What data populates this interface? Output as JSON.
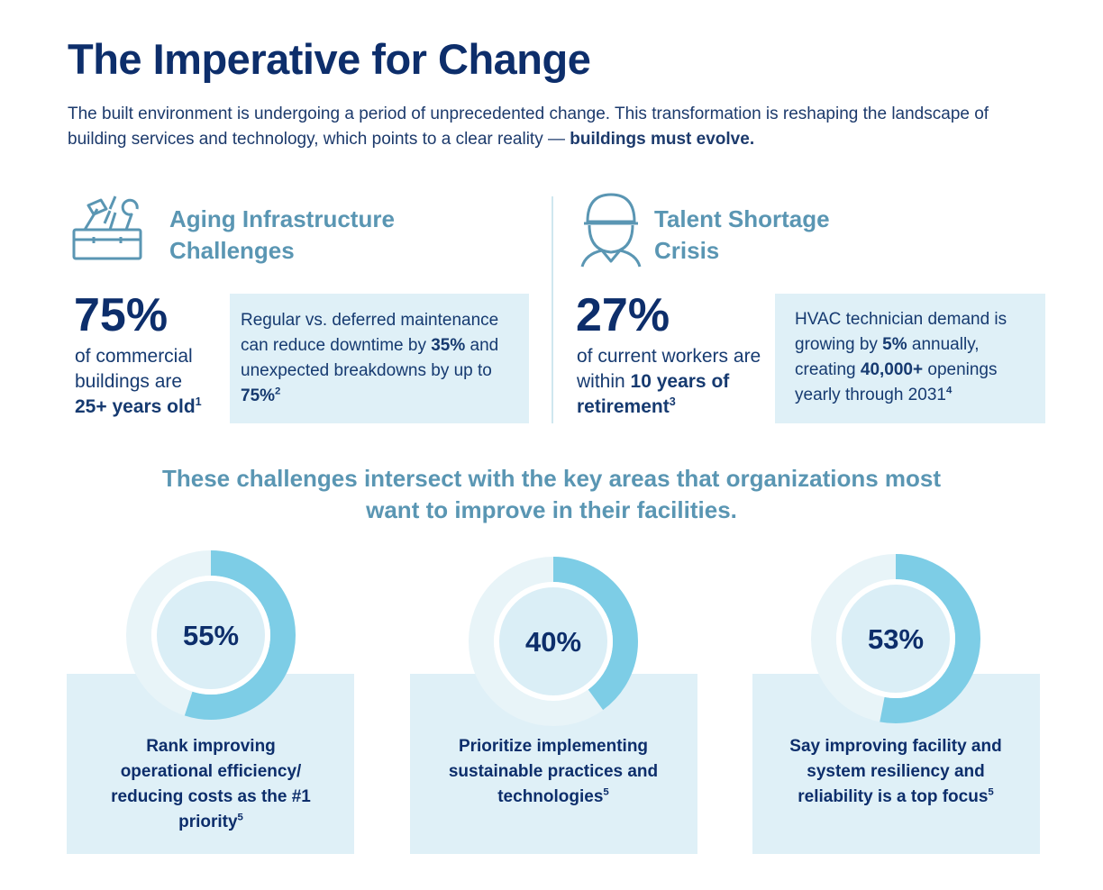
{
  "title": "The Imperative for Change",
  "intro": {
    "text": "The built environment is undergoing a period of unprecedented change. This transformation is reshaping the landscape of building services and technology, which points to a clear reality — ",
    "emphasis": "buildings must evolve."
  },
  "challenges": [
    {
      "heading": "Aging Infrastructure Challenges",
      "stat": "75%",
      "stat_text": [
        "of commercial buildings are ",
        "25+ years old",
        "1"
      ],
      "box": [
        "Regular vs. deferred maintenance can reduce downtime by ",
        "35%",
        " and unexpected breakdowns by up to ",
        "75%",
        "2"
      ]
    },
    {
      "heading": "Talent Shortage Crisis",
      "stat": "27%",
      "stat_text": [
        "of current workers are within ",
        "10 years of retirement",
        "3"
      ],
      "box": [
        "HVAC technician demand is growing by ",
        "5%",
        " annually, creating ",
        "40,000+",
        " openings yearly through 2031",
        "4"
      ]
    }
  ],
  "subheading": "These challenges intersect with the key areas that organizations most want to improve in their facilities.",
  "areas": [
    {
      "value": 55,
      "label": "55%",
      "text": [
        "Rank improving operational efficiency/ reducing costs as the #1 priority",
        "5"
      ]
    },
    {
      "value": 40,
      "label": "40%",
      "text": [
        "Prioritize implementing sustainable practices and technologies",
        "5"
      ]
    },
    {
      "value": 53,
      "label": "53%",
      "text": [
        "Say improving facility and system resiliency and reliability is a top focus",
        "5"
      ]
    }
  ]
}
